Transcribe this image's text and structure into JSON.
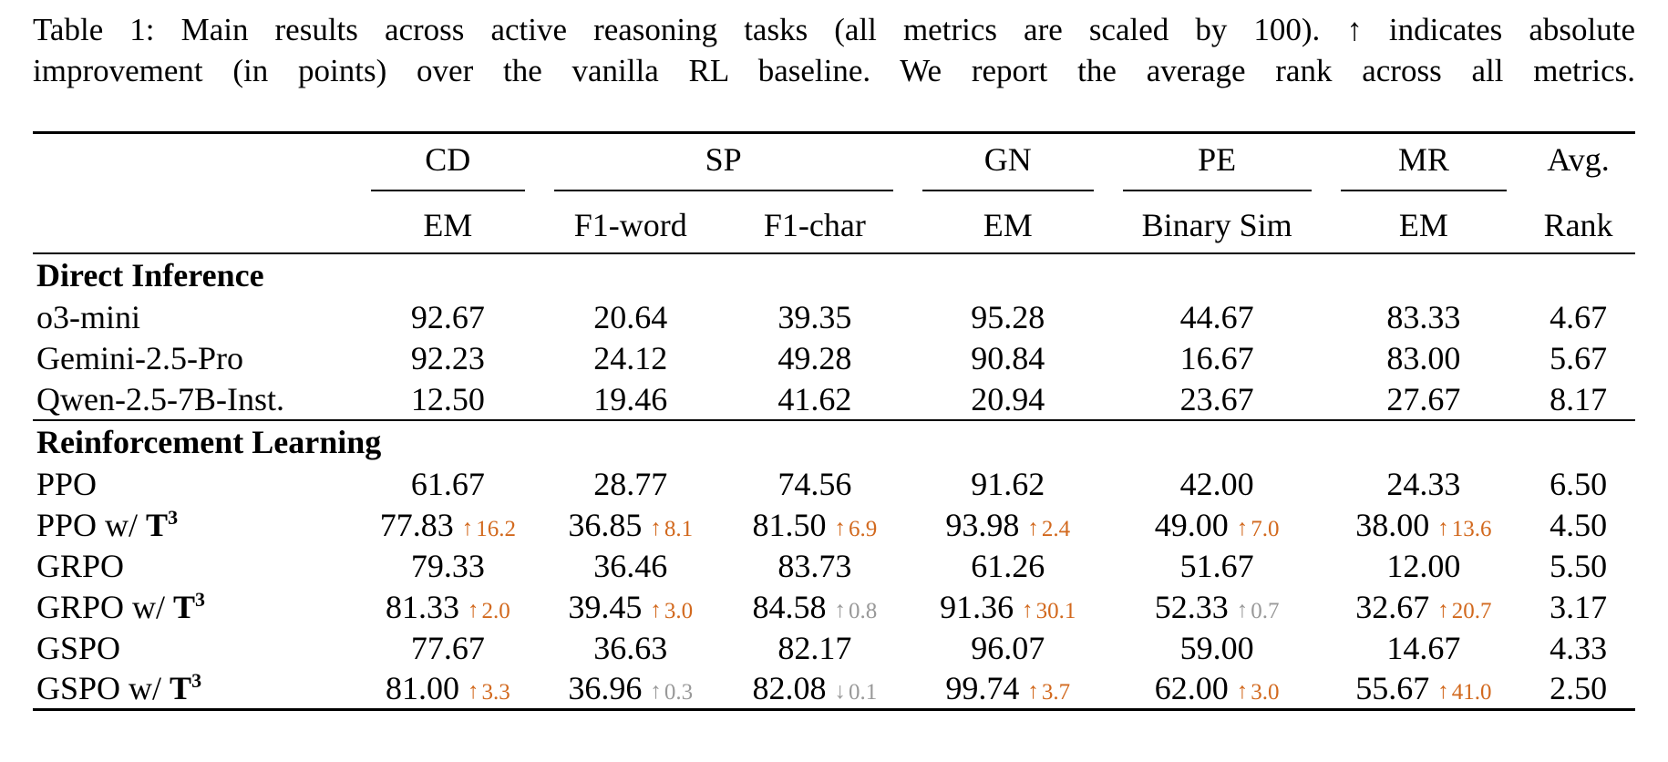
{
  "caption": {
    "line1": "Table 1: Main results across active reasoning tasks (all metrics are scaled by 100). ↑ indicates absolute",
    "line2": "improvement (in points) over the vanilla RL baseline. We report the average rank across all metrics."
  },
  "table": {
    "group_headers": [
      {
        "label": "CD"
      },
      {
        "label": "SP"
      },
      {
        "label": "GN"
      },
      {
        "label": "PE"
      },
      {
        "label": "MR"
      },
      {
        "label": "Avg."
      }
    ],
    "sub_headers": [
      "EM",
      "F1-word",
      "F1-char",
      "EM",
      "Binary Sim",
      "EM",
      "Rank"
    ],
    "symbols": {
      "up": "↑",
      "down": "↓"
    },
    "colors": {
      "positive": "#d2691e",
      "neutral": "#999999",
      "text": "#000000",
      "background": "#ffffff"
    },
    "sections": [
      {
        "title": "Direct Inference",
        "rows": [
          {
            "method": {
              "pre": "o3-mini"
            },
            "cells": [
              {
                "v": "92.67"
              },
              {
                "v": "20.64"
              },
              {
                "v": "39.35"
              },
              {
                "v": "95.28"
              },
              {
                "v": "44.67"
              },
              {
                "v": "83.33"
              },
              {
                "v": "4.67"
              }
            ]
          },
          {
            "method": {
              "pre": "Gemini-2.5-Pro"
            },
            "cells": [
              {
                "v": "92.23"
              },
              {
                "v": "24.12"
              },
              {
                "v": "49.28"
              },
              {
                "v": "90.84"
              },
              {
                "v": "16.67"
              },
              {
                "v": "83.00"
              },
              {
                "v": "5.67"
              }
            ]
          },
          {
            "method": {
              "pre": "Qwen-2.5-7B-Inst."
            },
            "cells": [
              {
                "v": "12.50"
              },
              {
                "v": "19.46"
              },
              {
                "v": "41.62"
              },
              {
                "v": "20.94"
              },
              {
                "v": "23.67"
              },
              {
                "v": "27.67"
              },
              {
                "v": "8.17"
              }
            ]
          }
        ]
      },
      {
        "title": "Reinforcement Learning",
        "rows": [
          {
            "method": {
              "pre": "PPO"
            },
            "cells": [
              {
                "v": "61.67"
              },
              {
                "v": "28.77"
              },
              {
                "v": "74.56"
              },
              {
                "v": "91.62"
              },
              {
                "v": "42.00"
              },
              {
                "v": "24.33"
              },
              {
                "v": "6.50"
              }
            ]
          },
          {
            "method": {
              "pre": "PPO w/ ",
              "t": "T",
              "sup": "3"
            },
            "cells": [
              {
                "v": "77.83",
                "d": "16.2",
                "dir": "up",
                "tone": "positive"
              },
              {
                "v": "36.85",
                "d": "8.1",
                "dir": "up",
                "tone": "positive"
              },
              {
                "v": "81.50",
                "d": "6.9",
                "dir": "up",
                "tone": "positive"
              },
              {
                "v": "93.98",
                "d": "2.4",
                "dir": "up",
                "tone": "positive"
              },
              {
                "v": "49.00",
                "d": "7.0",
                "dir": "up",
                "tone": "positive"
              },
              {
                "v": "38.00",
                "d": "13.6",
                "dir": "up",
                "tone": "positive"
              },
              {
                "v": "4.50"
              }
            ]
          },
          {
            "method": {
              "pre": "GRPO"
            },
            "cells": [
              {
                "v": "79.33"
              },
              {
                "v": "36.46"
              },
              {
                "v": "83.73"
              },
              {
                "v": "61.26"
              },
              {
                "v": "51.67"
              },
              {
                "v": "12.00"
              },
              {
                "v": "5.50"
              }
            ]
          },
          {
            "method": {
              "pre": "GRPO w/ ",
              "t": "T",
              "sup": "3"
            },
            "cells": [
              {
                "v": "81.33",
                "d": "2.0",
                "dir": "up",
                "tone": "positive"
              },
              {
                "v": "39.45",
                "d": "3.0",
                "dir": "up",
                "tone": "positive"
              },
              {
                "v": "84.58",
                "d": "0.8",
                "dir": "up",
                "tone": "neutral"
              },
              {
                "v": "91.36",
                "d": "30.1",
                "dir": "up",
                "tone": "positive"
              },
              {
                "v": "52.33",
                "d": "0.7",
                "dir": "up",
                "tone": "neutral"
              },
              {
                "v": "32.67",
                "d": "20.7",
                "dir": "up",
                "tone": "positive"
              },
              {
                "v": "3.17"
              }
            ]
          },
          {
            "method": {
              "pre": "GSPO"
            },
            "cells": [
              {
                "v": "77.67"
              },
              {
                "v": "36.63"
              },
              {
                "v": "82.17"
              },
              {
                "v": "96.07"
              },
              {
                "v": "59.00"
              },
              {
                "v": "14.67"
              },
              {
                "v": "4.33"
              }
            ]
          },
          {
            "method": {
              "pre": "GSPO w/ ",
              "t": "T",
              "sup": "3"
            },
            "cells": [
              {
                "v": "81.00",
                "d": "3.3",
                "dir": "up",
                "tone": "positive"
              },
              {
                "v": "36.96",
                "d": "0.3",
                "dir": "up",
                "tone": "neutral"
              },
              {
                "v": "82.08",
                "d": "0.1",
                "dir": "down",
                "tone": "neutral"
              },
              {
                "v": "99.74",
                "d": "3.7",
                "dir": "up",
                "tone": "positive"
              },
              {
                "v": "62.00",
                "d": "3.0",
                "dir": "up",
                "tone": "positive"
              },
              {
                "v": "55.67",
                "d": "41.0",
                "dir": "up",
                "tone": "positive"
              },
              {
                "v": "2.50"
              }
            ]
          }
        ]
      }
    ]
  }
}
